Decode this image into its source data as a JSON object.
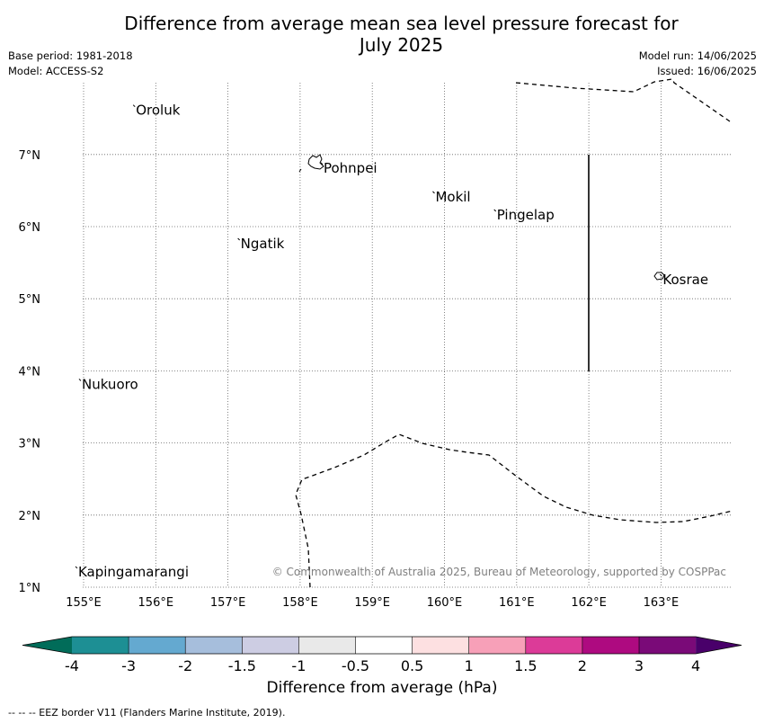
{
  "title_line1": "Difference from average mean sea level pressure forecast for",
  "title_line2": "July 2025",
  "base_period": "Base period: 1981-2018",
  "model": "Model: ACCESS-S2",
  "model_run": "Model run: 14/06/2025",
  "issued": "Issued: 16/06/2025",
  "copyright": "© Commonwealth of Australia 2025, Bureau of Meteorology, supported by COSPPac",
  "footer": "--  --  -- EEZ border V11 (Flanders Marine Institute, 2019).",
  "map": {
    "lon_range": [
      154.5,
      164.0
    ],
    "lat_range": [
      1.0,
      8.0
    ],
    "lon_ticks": [
      "155°E",
      "156°E",
      "157°E",
      "158°E",
      "159°E",
      "160°E",
      "161°E",
      "162°E",
      "163°E"
    ],
    "lat_ticks": [
      "1°N",
      "2°N",
      "3°N",
      "4°N",
      "5°N",
      "6°N",
      "7°N"
    ],
    "gridlines": true,
    "places": [
      {
        "name": "Oroluk",
        "lon": 155.7,
        "lat": 7.65
      },
      {
        "name": "Pohnpei",
        "lon": 158.3,
        "lat": 6.85
      },
      {
        "name": "Mokil",
        "lon": 159.85,
        "lat": 6.45
      },
      {
        "name": "Pingelap",
        "lon": 160.7,
        "lat": 6.2
      },
      {
        "name": "Ngatik",
        "lon": 157.15,
        "lat": 5.8
      },
      {
        "name": "Kosrae",
        "lon": 163.0,
        "lat": 5.3
      },
      {
        "name": "Nukuoro",
        "lon": 154.95,
        "lat": 3.85
      },
      {
        "name": "Kapingamarangi",
        "lon": 154.9,
        "lat": 1.25
      }
    ]
  },
  "colorbar": {
    "title": "Difference from average (hPa)",
    "tick_labels": [
      "-4",
      "-3",
      "-2",
      "-1.5",
      "-1",
      "-0.5",
      "0.5",
      "1",
      "1.5",
      "2",
      "3",
      "4"
    ],
    "colors": [
      "#1d8f94",
      "#64a9d0",
      "#a6bedc",
      "#cdcde3",
      "#e9e9e9",
      "#ffffff",
      "#fde0e1",
      "#f7a0b8",
      "#dc3b98",
      "#ae0a80",
      "#7a0a78"
    ],
    "under_color": "#016c59",
    "over_color": "#49006a"
  }
}
